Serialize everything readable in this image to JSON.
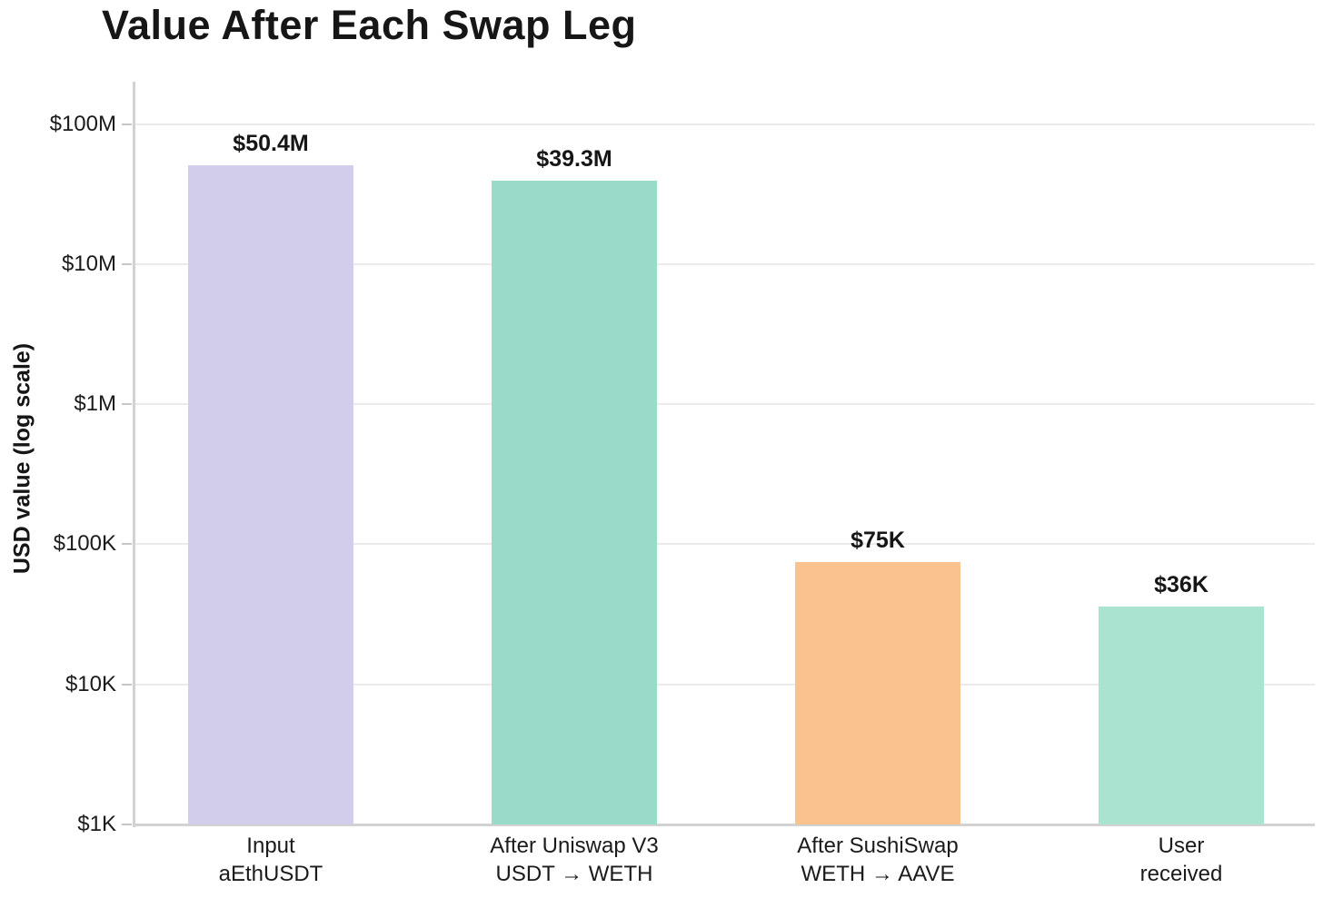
{
  "chart_data": {
    "type": "bar",
    "title": "Value After Each Swap Leg",
    "ylabel": "USD value (log scale)",
    "xlabel": "",
    "yscale": "log",
    "ylim": [
      1000,
      200000000
    ],
    "grid": true,
    "legend": "none",
    "yticks": [
      {
        "label": "$100M",
        "value": 100000000
      },
      {
        "label": "$10M",
        "value": 10000000
      },
      {
        "label": "$1M",
        "value": 1000000
      },
      {
        "label": "$100K",
        "value": 100000
      },
      {
        "label": "$10K",
        "value": 10000
      },
      {
        "label": "$1K",
        "value": 1000
      }
    ],
    "bars": [
      {
        "category_lines": [
          "Input",
          "aEthUSDT"
        ],
        "value": 50400000,
        "value_label": "$50.4M",
        "color": "#d2cdea"
      },
      {
        "category_lines": [
          "After Uniswap V3",
          "USDT → WETH"
        ],
        "value": 39300000,
        "value_label": "$39.3M",
        "color": "#97dbc8"
      },
      {
        "category_lines": [
          "After SushiSwap",
          "WETH → AAVE"
        ],
        "value": 75000,
        "value_label": "$75K",
        "color": "#fac28e"
      },
      {
        "category_lines": [
          "User",
          "received"
        ],
        "value": 36000,
        "value_label": "$36K",
        "color": "#aae3cf"
      }
    ],
    "colors": {
      "grid": "#ebebeb",
      "axis": "#d2d2d2",
      "tick": "#c6c6c6",
      "text": "#1b1b1b",
      "background": "#ffffff"
    }
  }
}
